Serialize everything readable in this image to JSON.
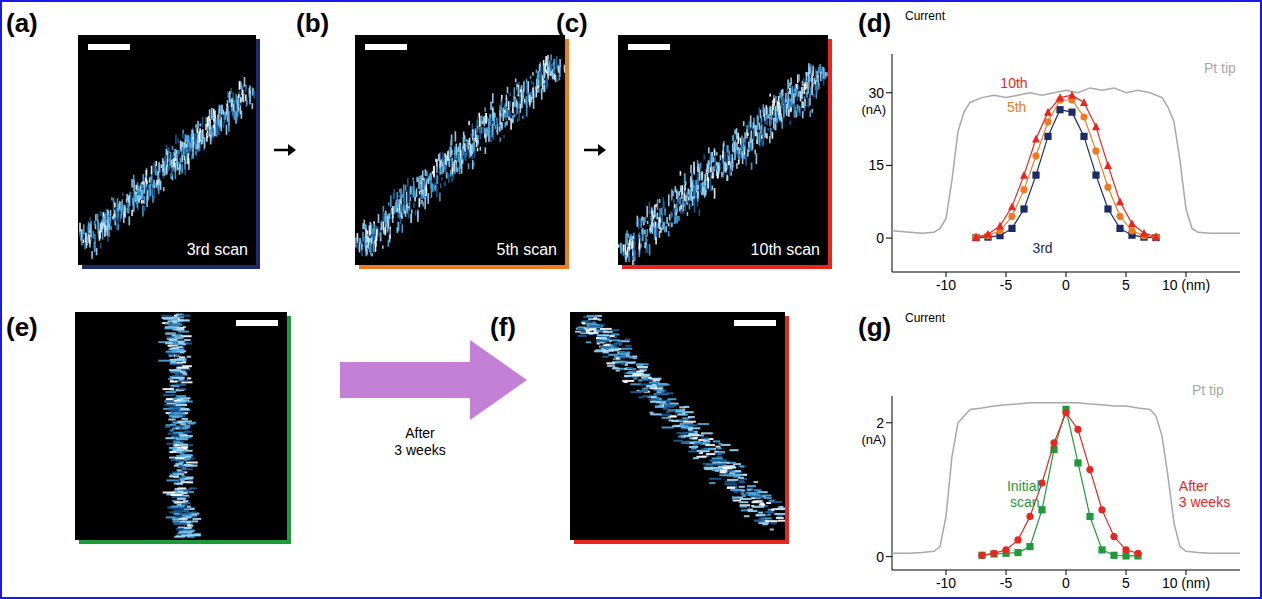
{
  "images": [
    {
      "letter": "(a)",
      "caption": "3rd scan",
      "color": "#1c2a66"
    },
    {
      "letter": "(b)",
      "caption": "5th scan",
      "color": "#f07a22"
    },
    {
      "letter": "(c)",
      "caption": "10th scan",
      "color": "#e8261f"
    },
    {
      "letter": "(e)",
      "color": "#1f9a3a"
    },
    {
      "letter": "(f)",
      "color": "#e8261f"
    }
  ],
  "arrow_label": "After 3 weeks",
  "chart_data": [
    {
      "type": "line",
      "letter": "(d)",
      "title": "Current",
      "y_unit": "(nA)",
      "xlim": [
        -14.5,
        14.5
      ],
      "xticks": [
        -10,
        -5,
        0,
        5,
        {
          "value": 10,
          "label": "10 (nm)"
        }
      ],
      "ylim": [
        -7,
        38
      ],
      "yticks": [
        0,
        15,
        30
      ],
      "grid": false,
      "series": [
        {
          "name": "3rd",
          "color": "#1c2a66",
          "marker": "square",
          "line_style": "solid",
          "x": [
            -7.5,
            -6.5,
            -5.5,
            -4.5,
            -3.5,
            -2.5,
            -1.5,
            -0.5,
            0.5,
            1.5,
            2.5,
            3.5,
            4.5,
            5.5,
            6.5,
            7.5
          ],
          "values": [
            0.1,
            0.2,
            0.5,
            2,
            6,
            13,
            21,
            26.5,
            26,
            21,
            13,
            6,
            2,
            0.6,
            0.2,
            0.1
          ]
        },
        {
          "name": "5th",
          "color": "#f07a22",
          "marker": "circle",
          "line_style": "solid",
          "x": [
            -7.5,
            -6.5,
            -5.5,
            -4.5,
            -3.5,
            -2.5,
            -1.5,
            -0.5,
            0.5,
            1.5,
            2.5,
            3.5,
            4.5,
            5.5,
            6.5,
            7.5
          ],
          "values": [
            0.2,
            0.5,
            1.5,
            4.5,
            10,
            17,
            24,
            28.5,
            28.5,
            25,
            18,
            10.5,
            4.5,
            1.5,
            0.5,
            0.2
          ]
        },
        {
          "name": "10th",
          "color": "#e8261f",
          "marker": "triangle",
          "line_style": "solid",
          "x": [
            -7.5,
            -6.5,
            -5.5,
            -4.5,
            -3.5,
            -2.5,
            -1.5,
            -0.5,
            0.5,
            1.5,
            2.5,
            3.5,
            4.5,
            5.5,
            6.5,
            7.5
          ],
          "values": [
            0.2,
            0.8,
            2.5,
            6.5,
            13,
            20.5,
            26,
            29,
            29.5,
            28,
            23,
            15,
            7.5,
            3,
            1,
            0.3
          ]
        },
        {
          "name": "Pt tip",
          "color": "#a8a8a8",
          "marker": "none",
          "line_style": "solid",
          "x": [
            -14.5,
            -13,
            -12,
            -11,
            -10.5,
            -10,
            -9.5,
            -9,
            -8.5,
            -8,
            -7,
            -6,
            -5,
            -4,
            -3,
            -2,
            -1,
            0,
            1,
            2,
            3,
            4,
            5,
            6,
            7,
            8,
            8.5,
            9,
            9.5,
            10,
            10.5,
            11,
            12,
            13,
            14.5
          ],
          "values": [
            1.5,
            1.2,
            1,
            1.2,
            2,
            4,
            12,
            22,
            26,
            28,
            29,
            29.5,
            29,
            29.5,
            30,
            29.5,
            30,
            30.5,
            30,
            31,
            30.5,
            31,
            30,
            30.5,
            30,
            29,
            27,
            24,
            16,
            6,
            2,
            1.2,
            1,
            1,
            1
          ]
        }
      ]
    },
    {
      "type": "line",
      "letter": "(g)",
      "title": "Current",
      "y_unit": "(nA)",
      "xlim": [
        -14.5,
        14.5
      ],
      "xticks": [
        -10,
        -5,
        0,
        5,
        {
          "value": 10,
          "label": "10 (nm)"
        }
      ],
      "ylim": [
        -0.2,
        2.4
      ],
      "yticks": [
        0,
        2
      ],
      "grid": false,
      "series": [
        {
          "name": "Initial scan",
          "color": "#1f9a3a",
          "marker": "square",
          "line_style": "solid",
          "x": [
            -7,
            -6,
            -5,
            -4,
            -3,
            -2,
            -1,
            0,
            1,
            2,
            3,
            4,
            5,
            6
          ],
          "values": [
            0.02,
            0.04,
            0.05,
            0.06,
            0.15,
            0.7,
            1.6,
            2.2,
            1.4,
            0.6,
            0.1,
            0.02,
            0.01,
            0.01
          ]
        },
        {
          "name": "After 3 weeks",
          "color": "#e8261f",
          "marker": "circle",
          "line_style": "solid",
          "x": [
            -7,
            -6,
            -5,
            -4,
            -3,
            -2,
            -1,
            0,
            1,
            2,
            3,
            4,
            5,
            6
          ],
          "values": [
            0.02,
            0.05,
            0.1,
            0.25,
            0.6,
            1.1,
            1.7,
            2.15,
            1.9,
            1.3,
            0.7,
            0.3,
            0.1,
            0.05
          ]
        },
        {
          "name": "Pt tip",
          "color": "#a8a8a8",
          "marker": "none",
          "line_style": "solid",
          "x": [
            -14.5,
            -13,
            -12,
            -11,
            -10.5,
            -10,
            -9.5,
            -9,
            -8,
            -7,
            -6,
            -5,
            -4,
            -3,
            -2,
            -1,
            0,
            1,
            2,
            3,
            4,
            5,
            6,
            7,
            7.5,
            8,
            8.5,
            9,
            9.5,
            10,
            11,
            12,
            13,
            14.5
          ],
          "values": [
            0.05,
            0.05,
            0.06,
            0.08,
            0.15,
            0.6,
            1.5,
            2.0,
            2.2,
            2.22,
            2.25,
            2.27,
            2.28,
            2.3,
            2.3,
            2.3,
            2.3,
            2.3,
            2.28,
            2.27,
            2.25,
            2.25,
            2.22,
            2.2,
            2.1,
            1.8,
            1.2,
            0.5,
            0.15,
            0.08,
            0.06,
            0.05,
            0.05,
            0.05
          ]
        }
      ]
    }
  ]
}
